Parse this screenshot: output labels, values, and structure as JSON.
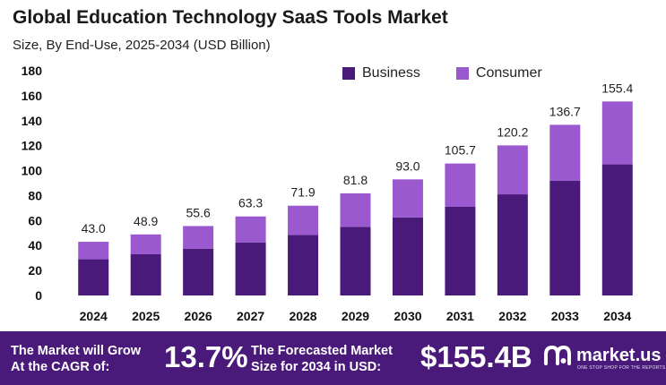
{
  "header": {
    "title": "Global Education Technology SaaS Tools Market",
    "subtitle": "Size, By End-Use, 2025-2034 (USD Billion)"
  },
  "colors": {
    "business": "#4a1a7a",
    "consumer": "#9b59d0",
    "footer_bg": "#4a1a7a"
  },
  "chart_data": {
    "type": "bar",
    "stacked": true,
    "categories": [
      "2024",
      "2025",
      "2026",
      "2027",
      "2028",
      "2029",
      "2030",
      "2031",
      "2032",
      "2033",
      "2034"
    ],
    "series": [
      {
        "name": "Business",
        "values": [
          29.0,
          33.0,
          37.5,
          42.5,
          48.5,
          55.0,
          62.5,
          71.0,
          81.0,
          92.0,
          105.0
        ]
      },
      {
        "name": "Consumer",
        "values": [
          14.0,
          15.9,
          18.1,
          20.8,
          23.4,
          26.8,
          30.5,
          34.7,
          39.2,
          44.7,
          50.4
        ]
      }
    ],
    "totals": [
      43.0,
      48.9,
      55.6,
      63.3,
      71.9,
      81.8,
      93.0,
      105.7,
      120.2,
      136.7,
      155.4
    ],
    "total_labels": [
      "43.0",
      "48.9",
      "55.6",
      "63.3",
      "71.9",
      "81.8",
      "93.0",
      "105.7",
      "120.2",
      "136.7",
      "155.4"
    ],
    "ylim": [
      0,
      180
    ],
    "yticks": [
      0,
      20,
      40,
      60,
      80,
      100,
      120,
      140,
      160,
      180
    ],
    "legend_position": "top-right",
    "grid": false
  },
  "footer": {
    "cagr_text_line1": "The Market will Grow",
    "cagr_text_line2": "At the CAGR of:",
    "cagr_value": "13.7%",
    "forecast_text_line1": "The Forecasted Market",
    "forecast_text_line2": "Size for 2034 in USD:",
    "forecast_value": "$155.4B",
    "logo_name": "market.us",
    "logo_icon": "market-us-logo-icon",
    "logo_tagline": "ONE STOP SHOP FOR THE REPORTS"
  }
}
